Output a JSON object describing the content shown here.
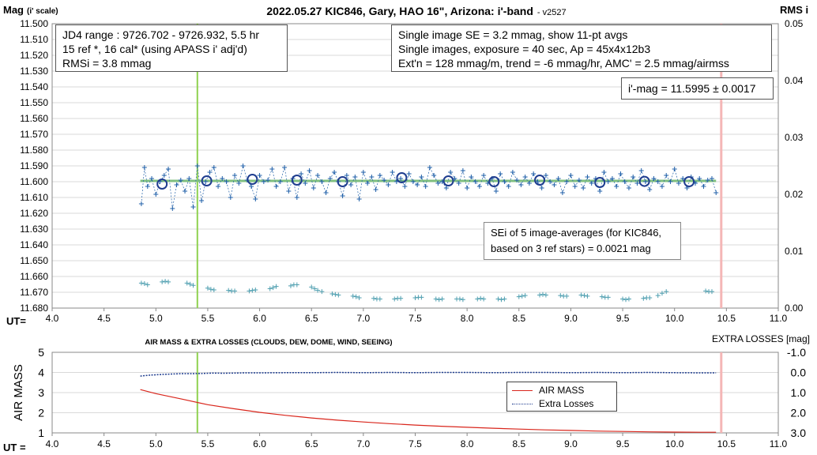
{
  "chart_data": [
    {
      "type": "scatter",
      "title": "2022.05.27 KIC846, Gary, HAO 16\", Arizona: i'-band",
      "version": "- v2527",
      "ylabel_main": "Mag",
      "ylabel_sub": "(i' scale)",
      "xlabel": "UT=",
      "y2label": "RMS i",
      "xlim": [
        4.0,
        11.0
      ],
      "ylim": [
        11.5,
        11.68
      ],
      "y_reversed": true,
      "y2lim": [
        0.0,
        0.05
      ],
      "x_ticks": [
        "4.0",
        "4.5",
        "5.0",
        "5.5",
        "6.0",
        "6.5",
        "7.0",
        "7.5",
        "8.0",
        "8.5",
        "9.0",
        "9.5",
        "10.0",
        "10.5",
        "11.0"
      ],
      "y_ticks": [
        "11.500",
        "11.510",
        "11.520",
        "11.530",
        "11.540",
        "11.550",
        "11.560",
        "11.570",
        "11.580",
        "11.590",
        "11.600",
        "11.610",
        "11.620",
        "11.630",
        "11.640",
        "11.650",
        "11.660",
        "11.670",
        "11.680"
      ],
      "y2_ticks": [
        "0.00",
        "0.01",
        "0.02",
        "0.03",
        "0.04",
        "0.05"
      ],
      "vertical_lines": [
        {
          "x": 5.4,
          "color": "#8fd14f"
        },
        {
          "x": 10.45,
          "color": "#f4b6b6"
        }
      ],
      "fit_line": {
        "x": [
          4.85,
          10.4
        ],
        "y": [
          11.5995,
          11.5995
        ],
        "color": "#7fbf7f"
      },
      "series": [
        {
          "kind": "single_images",
          "marker": "plus",
          "color": "#1f5fa8",
          "x": [
            4.86,
            4.89,
            4.92,
            4.96,
            5.0,
            5.04,
            5.08,
            5.12,
            5.16,
            5.2,
            5.24,
            5.28,
            5.32,
            5.36,
            5.4,
            5.44,
            5.48,
            5.52,
            5.56,
            5.6,
            5.64,
            5.68,
            5.72,
            5.76,
            5.8,
            5.84,
            5.88,
            5.92,
            5.96,
            6.0,
            6.04,
            6.08,
            6.12,
            6.16,
            6.2,
            6.24,
            6.28,
            6.32,
            6.36,
            6.4,
            6.44,
            6.48,
            6.52,
            6.56,
            6.6,
            6.64,
            6.68,
            6.72,
            6.76,
            6.8,
            6.84,
            6.88,
            6.92,
            6.96,
            7.0,
            7.04,
            7.08,
            7.12,
            7.16,
            7.2,
            7.24,
            7.28,
            7.32,
            7.36,
            7.4,
            7.44,
            7.48,
            7.52,
            7.56,
            7.6,
            7.64,
            7.68,
            7.72,
            7.76,
            7.8,
            7.84,
            7.88,
            7.92,
            7.96,
            8.0,
            8.04,
            8.08,
            8.12,
            8.16,
            8.2,
            8.24,
            8.28,
            8.32,
            8.36,
            8.4,
            8.44,
            8.48,
            8.52,
            8.56,
            8.6,
            8.64,
            8.68,
            8.72,
            8.76,
            8.8,
            8.84,
            8.88,
            8.92,
            8.96,
            9.0,
            9.04,
            9.08,
            9.12,
            9.16,
            9.2,
            9.24,
            9.28,
            9.32,
            9.36,
            9.4,
            9.44,
            9.48,
            9.52,
            9.56,
            9.6,
            9.64,
            9.68,
            9.72,
            9.76,
            9.8,
            9.84,
            9.88,
            9.92,
            9.96,
            10.0,
            10.04,
            10.08,
            10.12,
            10.16,
            10.2,
            10.24,
            10.28,
            10.32,
            10.36,
            10.4
          ],
          "y": [
            11.614,
            11.591,
            11.603,
            11.598,
            11.608,
            11.6,
            11.596,
            11.592,
            11.617,
            11.602,
            11.599,
            11.606,
            11.598,
            11.616,
            11.59,
            11.612,
            11.6,
            11.594,
            11.591,
            11.603,
            11.598,
            11.6,
            11.61,
            11.596,
            11.601,
            11.59,
            11.599,
            11.603,
            11.611,
            11.596,
            11.6,
            11.599,
            11.592,
            11.603,
            11.6,
            11.591,
            11.606,
            11.598,
            11.61,
            11.595,
            11.601,
            11.593,
            11.604,
            11.596,
            11.6,
            11.607,
            11.598,
            11.594,
            11.6,
            11.609,
            11.596,
            11.602,
            11.597,
            11.611,
            11.594,
            11.601,
            11.597,
            11.605,
            11.596,
            11.599,
            11.602,
            11.594,
            11.6,
            11.598,
            11.603,
            11.595,
            11.6,
            11.602,
            11.597,
            11.603,
            11.591,
            11.596,
            11.601,
            11.6,
            11.604,
            11.594,
            11.598,
            11.601,
            11.593,
            11.604,
            11.597,
            11.6,
            11.603,
            11.596,
            11.601,
            11.598,
            11.606,
            11.595,
            11.6,
            11.603,
            11.594,
            11.599,
            11.602,
            11.597,
            11.601,
            11.595,
            11.6,
            11.604,
            11.596,
            11.6,
            11.602,
            11.598,
            11.607,
            11.6,
            11.596,
            11.603,
            11.599,
            11.604,
            11.597,
            11.601,
            11.598,
            11.606,
            11.594,
            11.6,
            11.598,
            11.603,
            11.595,
            11.6,
            11.604,
            11.597,
            11.601,
            11.593,
            11.6,
            11.605,
            11.598,
            11.6,
            11.603,
            11.596,
            11.6,
            11.592,
            11.601,
            11.598,
            11.604,
            11.597,
            11.601,
            11.598,
            11.603,
            11.599,
            11.598,
            11.607
          ]
        },
        {
          "kind": "11-pt_averages",
          "marker": "open-circle",
          "color": "#1f3d8f",
          "x": [
            5.06,
            5.49,
            5.93,
            6.36,
            6.8,
            7.37,
            7.82,
            8.26,
            8.7,
            9.28,
            9.71,
            10.14
          ],
          "y": [
            11.6015,
            11.5995,
            11.5985,
            11.599,
            11.6,
            11.5975,
            11.5995,
            11.6,
            11.599,
            11.6005,
            11.5998,
            11.6
          ]
        },
        {
          "kind": "rms",
          "axis": "y2",
          "marker": "plus",
          "color": "#4f9fb0",
          "x": [
            4.86,
            4.89,
            4.92,
            5.06,
            5.09,
            5.12,
            5.3,
            5.33,
            5.36,
            5.5,
            5.53,
            5.56,
            5.7,
            5.73,
            5.76,
            5.9,
            5.93,
            5.96,
            6.1,
            6.13,
            6.16,
            6.3,
            6.33,
            6.36,
            6.5,
            6.53,
            6.56,
            6.6,
            6.7,
            6.73,
            6.76,
            6.9,
            6.93,
            6.96,
            7.1,
            7.13,
            7.16,
            7.3,
            7.33,
            7.36,
            7.5,
            7.53,
            7.56,
            7.7,
            7.73,
            7.76,
            7.9,
            7.93,
            7.96,
            8.1,
            8.13,
            8.16,
            8.3,
            8.33,
            8.36,
            8.5,
            8.53,
            8.56,
            8.7,
            8.73,
            8.76,
            8.9,
            8.93,
            8.96,
            9.1,
            9.13,
            9.16,
            9.3,
            9.33,
            9.36,
            9.5,
            9.53,
            9.56,
            9.7,
            9.73,
            9.76,
            9.84,
            9.88,
            9.92,
            10.3,
            10.33,
            10.36
          ],
          "y": [
            0.0044,
            0.0043,
            0.0041,
            0.0046,
            0.0047,
            0.0046,
            0.0044,
            0.0042,
            0.004,
            0.0035,
            0.0033,
            0.0032,
            0.0031,
            0.003,
            0.003,
            0.003,
            0.0031,
            0.0032,
            0.0034,
            0.0036,
            0.0038,
            0.0039,
            0.0041,
            0.0041,
            0.0037,
            0.0034,
            0.0031,
            0.0029,
            0.0025,
            0.0024,
            0.0023,
            0.0021,
            0.002,
            0.0018,
            0.0017,
            0.0016,
            0.0016,
            0.0016,
            0.0017,
            0.0017,
            0.0018,
            0.0019,
            0.0019,
            0.0016,
            0.0015,
            0.0016,
            0.0016,
            0.0016,
            0.0015,
            0.0016,
            0.0017,
            0.0016,
            0.0016,
            0.0015,
            0.0016,
            0.002,
            0.0021,
            0.0022,
            0.0023,
            0.0024,
            0.0023,
            0.0022,
            0.0021,
            0.0021,
            0.0023,
            0.0022,
            0.0021,
            0.002,
            0.0019,
            0.0019,
            0.0016,
            0.0015,
            0.0016,
            0.0017,
            0.0018,
            0.0018,
            0.0022,
            0.0026,
            0.0029,
            0.003,
            0.0029,
            0.0029
          ]
        }
      ]
    },
    {
      "type": "line",
      "title": "AIR MASS & EXTRA LOSSES (CLOUDS, DEW, DOME, WIND, SEEING)",
      "ylabel": "AIR MASS",
      "y2label": "EXTRA LOSSES [mag]",
      "xlabel": "UT =",
      "xlim": [
        4.0,
        11.0
      ],
      "ylim": [
        1,
        5
      ],
      "y2lim": [
        -1.0,
        3.0
      ],
      "y2_reversed": true,
      "x_ticks": [
        "4.0",
        "4.5",
        "5.0",
        "5.5",
        "6.0",
        "6.5",
        "7.0",
        "7.5",
        "8.0",
        "8.5",
        "9.0",
        "9.5",
        "10.0",
        "10.5",
        "11.0"
      ],
      "y_ticks": [
        "1",
        "2",
        "3",
        "4",
        "5"
      ],
      "y2_ticks": [
        "-1.0",
        "0.0",
        "1.0",
        "2.0",
        "3.0"
      ],
      "vertical_lines": [
        {
          "x": 5.4,
          "color": "#8fd14f"
        },
        {
          "x": 10.45,
          "color": "#f4b6b6"
        }
      ],
      "legend": {
        "placement": "center-right",
        "entries": [
          "AIR MASS",
          "Extra Losses"
        ]
      },
      "series": [
        {
          "name": "AIR MASS",
          "color": "#d9261c",
          "x": [
            4.85,
            5.0,
            5.25,
            5.5,
            5.75,
            6.0,
            6.25,
            6.5,
            6.75,
            7.0,
            7.25,
            7.5,
            7.75,
            8.0,
            8.25,
            8.5,
            8.75,
            9.0,
            9.25,
            9.5,
            9.75,
            10.0,
            10.25,
            10.4
          ],
          "y": [
            3.15,
            2.95,
            2.68,
            2.4,
            2.2,
            2.02,
            1.87,
            1.74,
            1.63,
            1.54,
            1.46,
            1.39,
            1.33,
            1.28,
            1.23,
            1.19,
            1.15,
            1.12,
            1.09,
            1.07,
            1.05,
            1.04,
            1.03,
            1.03
          ]
        },
        {
          "name": "Extra Losses",
          "axis": "y2",
          "color": "#1f3d8f",
          "x": [
            4.85,
            4.95,
            5.05,
            5.15,
            5.25,
            5.35,
            5.45,
            5.55,
            5.65,
            5.75,
            5.85,
            6.0,
            6.25,
            6.5,
            6.75,
            7.0,
            7.25,
            7.5,
            7.75,
            8.0,
            8.25,
            8.5,
            8.75,
            9.0,
            9.25,
            9.5,
            9.75,
            10.0,
            10.25,
            10.4
          ],
          "y": [
            0.18,
            0.13,
            0.1,
            0.08,
            0.06,
            0.06,
            0.05,
            0.03,
            0.04,
            0.03,
            0.02,
            0.02,
            0.01,
            0.01,
            0.0,
            0.01,
            0.0,
            0.01,
            0.0,
            0.0,
            0.01,
            0.0,
            0.0,
            0.01,
            0.0,
            0.01,
            0.0,
            0.01,
            0.02,
            0.02
          ]
        }
      ]
    }
  ],
  "annotations": {
    "top_left": [
      "JD4 range : 9726.702 - 9726.932, 5.5  hr",
      "15 ref *, 16 cal* (using APASS i' adj'd)",
      "RMSi = 3.8 mmag"
    ],
    "top_right": [
      "Single image SE = 3.2 mmag, show 11-pt avgs",
      "Single images, exposure = 40 sec, Ap = 45x4x12b3",
      "Ext'n = 128 mmag/m, trend = -6 mmag/hr, AMC' = 2.5 mmag/airmss"
    ],
    "mag_box": "i'-mag = 11.5995 ± 0.0017",
    "sei_box": [
      "SEi of 5 image-averages (for KIC846,",
      "based on 3 ref stars) = 0.0021 mag"
    ]
  }
}
